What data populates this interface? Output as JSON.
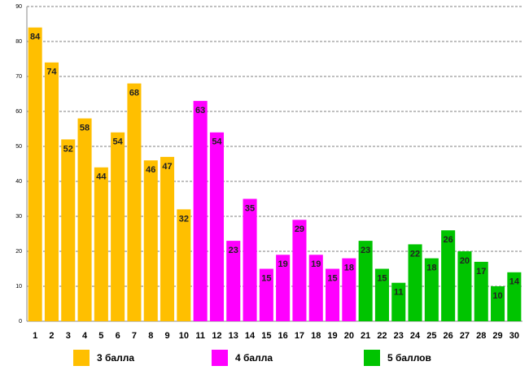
{
  "chart_data": {
    "type": "bar",
    "categories": [
      "1",
      "2",
      "3",
      "4",
      "5",
      "6",
      "7",
      "8",
      "9",
      "10",
      "11",
      "12",
      "13",
      "14",
      "15",
      "16",
      "17",
      "18",
      "19",
      "20",
      "21",
      "22",
      "23",
      "24",
      "25",
      "26",
      "27",
      "28",
      "29",
      "30"
    ],
    "series": [
      {
        "name": "3 балла",
        "color": "#ffbf00",
        "values": [
          84,
          74,
          52,
          58,
          44,
          54,
          68,
          46,
          47,
          32,
          null,
          null,
          null,
          null,
          null,
          null,
          null,
          null,
          null,
          null,
          null,
          null,
          null,
          null,
          null,
          null,
          null,
          null,
          null,
          null
        ]
      },
      {
        "name": "4 балла",
        "color": "#ff00ff",
        "values": [
          null,
          null,
          null,
          null,
          null,
          null,
          null,
          null,
          null,
          null,
          63,
          54,
          23,
          35,
          15,
          19,
          29,
          19,
          15,
          18,
          null,
          null,
          null,
          null,
          null,
          null,
          null,
          null,
          null,
          null
        ]
      },
      {
        "name": "5 баллов",
        "color": "#00c400",
        "values": [
          null,
          null,
          null,
          null,
          null,
          null,
          null,
          null,
          null,
          null,
          null,
          null,
          null,
          null,
          null,
          null,
          null,
          null,
          null,
          null,
          23,
          15,
          11,
          22,
          18,
          26,
          20,
          17,
          10,
          14
        ]
      }
    ],
    "ylim": [
      0,
      90
    ],
    "yticks": [
      0,
      10,
      20,
      30,
      40,
      50,
      60,
      70,
      80,
      90
    ],
    "grid": true,
    "legend": "bottom"
  }
}
